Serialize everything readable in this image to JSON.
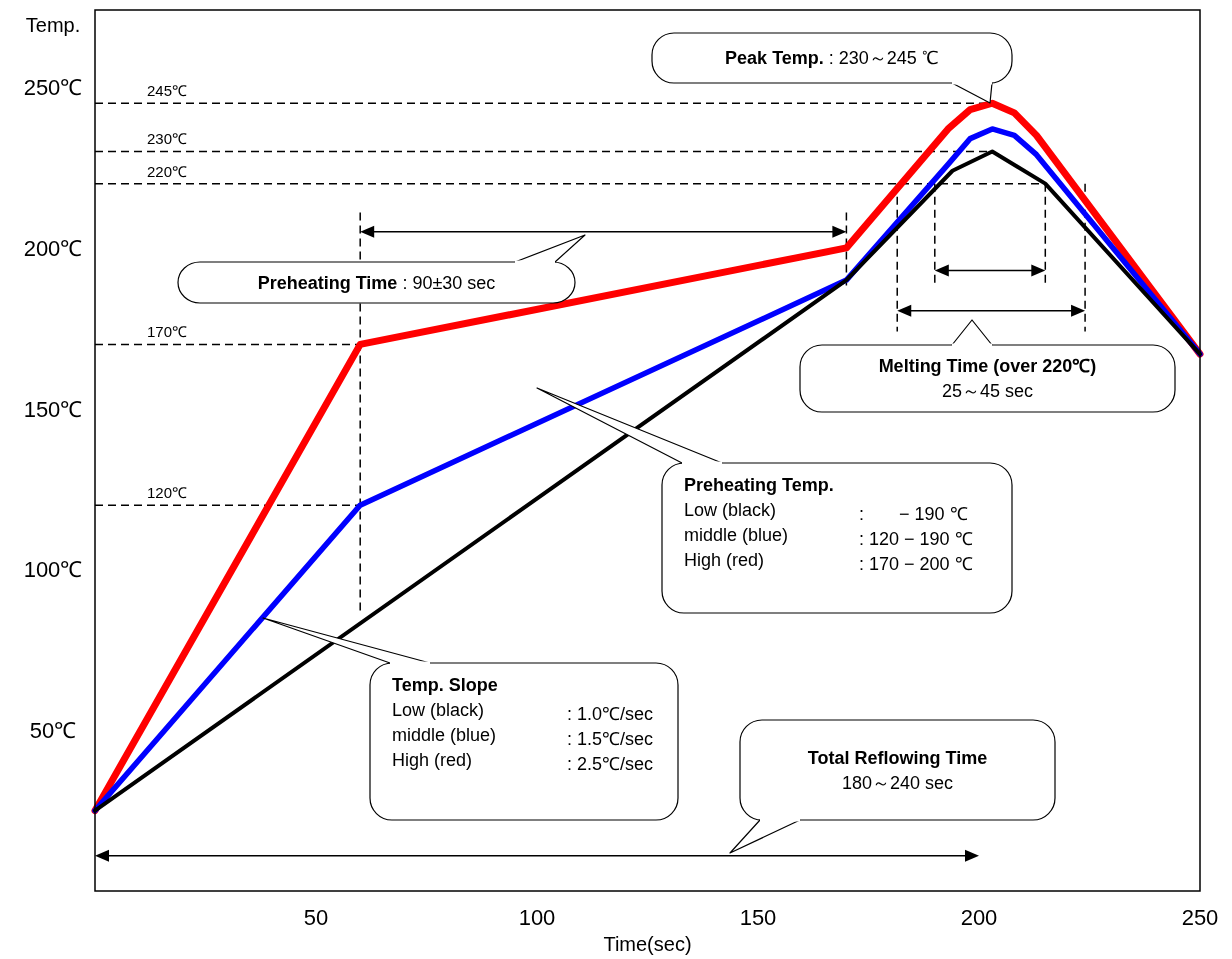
{
  "chart_data": {
    "type": "line",
    "xlabel": "Time(sec)",
    "ylabel": "Temp.",
    "xlim": [
      0,
      250
    ],
    "ylim": [
      0,
      274
    ],
    "xticks": [
      50,
      100,
      150,
      200,
      250
    ],
    "yticks": [
      {
        "value": 50,
        "label": "50℃"
      },
      {
        "value": 100,
        "label": "100℃"
      },
      {
        "value": 150,
        "label": "150℃"
      },
      {
        "value": 200,
        "label": "200℃"
      },
      {
        "value": 250,
        "label": "250℃"
      }
    ],
    "grid": false,
    "marker": "none",
    "line_style": "solid",
    "series": [
      {
        "color": "#ff0000",
        "x": [
          0,
          60,
          170,
          193,
          198,
          203,
          208,
          213,
          250
        ],
        "values": [
          25,
          170,
          200,
          237,
          243,
          245,
          242,
          235,
          167
        ]
      },
      {
        "color": "#0000ff",
        "x": [
          0,
          60,
          170,
          193,
          198,
          203,
          208,
          213,
          250
        ],
        "values": [
          25,
          120,
          190,
          226,
          234,
          237,
          235,
          229,
          167
        ]
      },
      {
        "color": "#000000",
        "x": [
          0,
          170,
          194,
          203,
          215,
          250
        ],
        "values": [
          25,
          190,
          224,
          230,
          220,
          167
        ]
      }
    ],
    "ref_lines": [
      {
        "axis": "y",
        "value": 245,
        "label": "245℃",
        "line_style": "dashed"
      },
      {
        "axis": "y",
        "value": 230,
        "label": "230℃",
        "line_style": "dashed"
      },
      {
        "axis": "y",
        "value": 220,
        "label": "220℃",
        "line_style": "dashed"
      },
      {
        "axis": "y",
        "value": 170,
        "label": "170℃",
        "line_style": "dashed"
      },
      {
        "axis": "y",
        "value": 120,
        "label": "120℃",
        "line_style": "dashed"
      }
    ],
    "annotations": [
      "Peak Temp. : 230～245 ℃",
      "Preheating Time : 90±30 sec",
      "Melting Time (over 220℃)\n25～45 sec",
      "Preheating Temp.\nLow (black)\t:       − 190 ℃\nmiddle (blue)\t: 120 − 190 ℃\nHigh (red)\t: 170 − 200 ℃",
      "Temp. Slope\nLow (black)\t: 1.0℃/sec\nmiddle (blue)\t: 1.5℃/sec\nHigh (red)\t: 2.5℃/sec",
      "Total Reflowing Time\n180～240 sec"
    ]
  }
}
